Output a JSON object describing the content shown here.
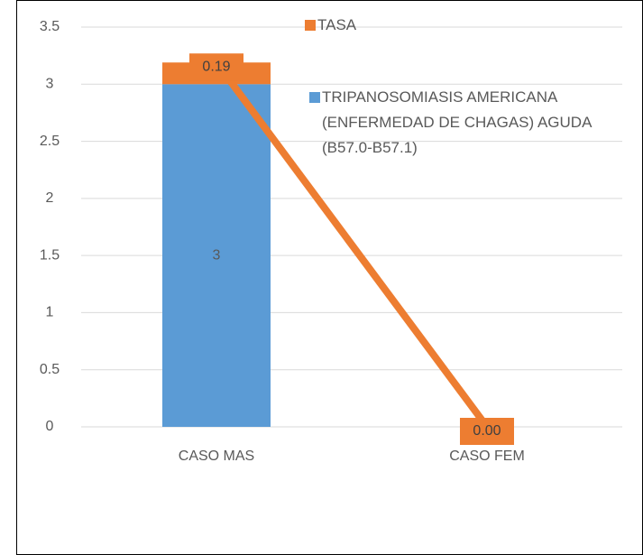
{
  "chart_data": {
    "type": "bar",
    "stacked": true,
    "categories": [
      "CASO MAS",
      "CASO FEM"
    ],
    "series": [
      {
        "name": "TRIPANOSOMIASIS AMERICANA (ENFERMEDAD DE CHAGAS) AGUDA (B57.0-B57.1)",
        "color": "#5b9bd5",
        "values": [
          3,
          0
        ],
        "value_labels": [
          "3",
          null
        ]
      },
      {
        "name": "TASA",
        "color": "#ed7d31",
        "values": [
          0.19,
          0
        ],
        "value_labels": [
          "0.19",
          "0.00"
        ],
        "line": true
      }
    ],
    "ylim": [
      0,
      3.5
    ],
    "yticks": [
      0,
      0.5,
      1,
      1.5,
      2,
      2.5,
      3,
      3.5
    ],
    "grid": true
  }
}
